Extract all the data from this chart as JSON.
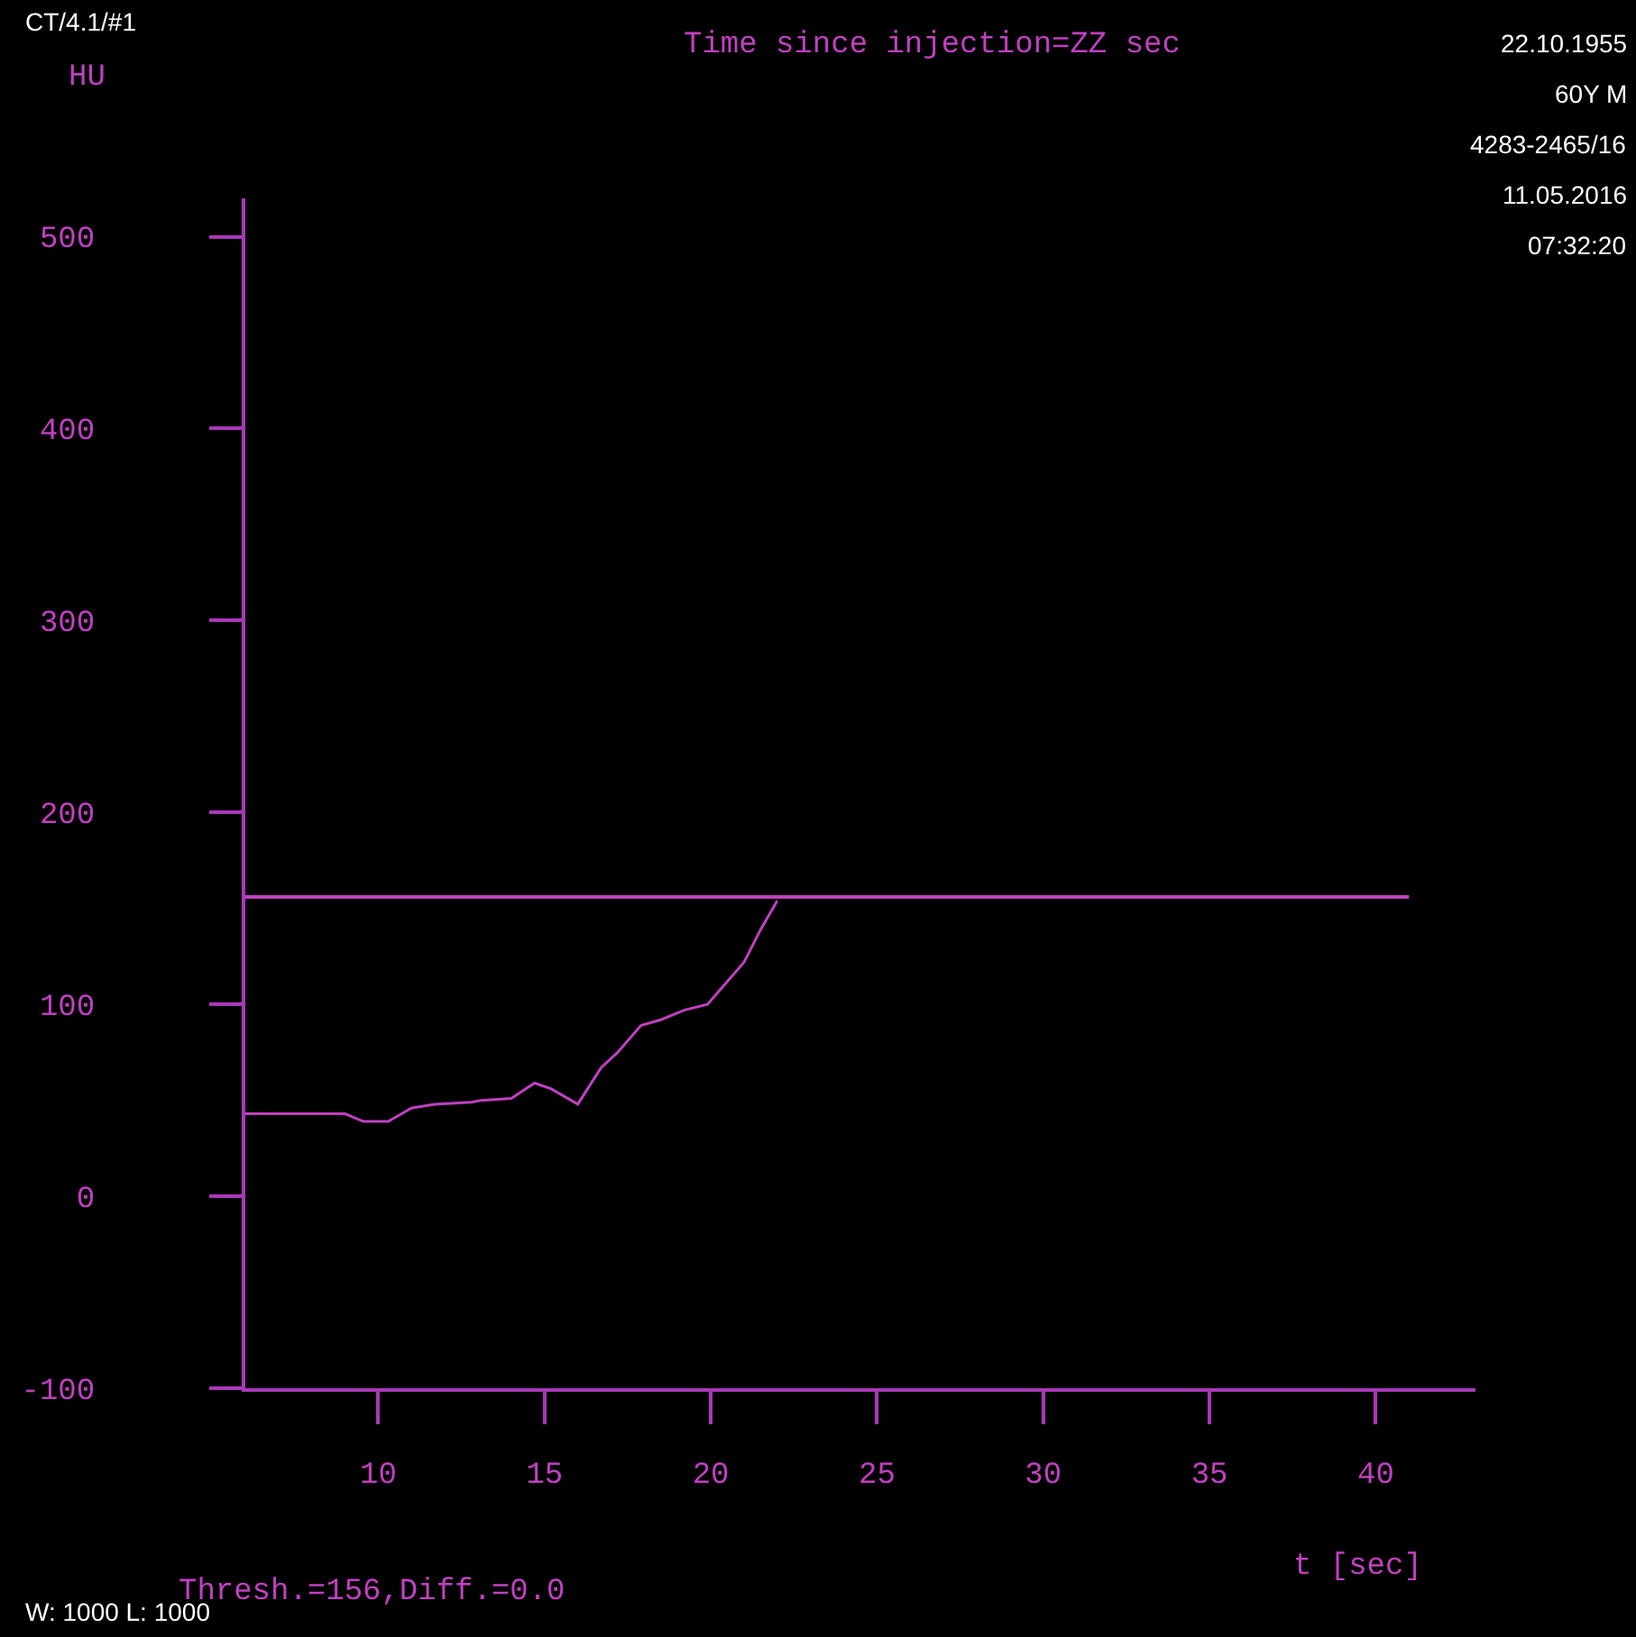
{
  "chart_data": {
    "type": "line",
    "title": "Time since injection=ZZ sec",
    "xlabel": "t [sec]",
    "ylabel": "HU",
    "x": [
      6,
      9.0,
      9.55,
      10.3,
      11.0,
      11.7,
      12.8,
      13.1,
      14.0,
      14.7,
      15.2,
      16.0,
      16.7,
      17.2,
      17.9,
      18.5,
      19.2,
      19.9,
      20.3,
      21.0,
      21.5,
      22.0
    ],
    "series": [
      {
        "color": "#c040c0",
        "values": [
          43,
          43,
          39,
          39,
          46,
          48,
          49,
          50,
          51,
          59,
          56,
          48,
          67,
          75,
          89,
          92,
          97,
          100,
          108,
          122,
          139,
          154
        ]
      }
    ],
    "xlim": [
      6,
      43
    ],
    "xticks": [
      10,
      15,
      20,
      25,
      30,
      35,
      40
    ],
    "ylim": [
      -100,
      520
    ],
    "yticks": [
      -100,
      0,
      100,
      200,
      300,
      400,
      500
    ],
    "ref_lines": [
      {
        "axis": "y",
        "value": 156,
        "color": "#c040c0"
      }
    ],
    "grid": false,
    "marker": "none",
    "line_style": "solid",
    "annotations": [
      "CT/4.1/#1",
      "22.10.1955",
      "60Y M",
      "4283-2465/16",
      "11.05.2016",
      "07:32:20",
      "Thresh.=156,Diff.=0.0",
      "W: 1000 L: 1000"
    ]
  }
}
